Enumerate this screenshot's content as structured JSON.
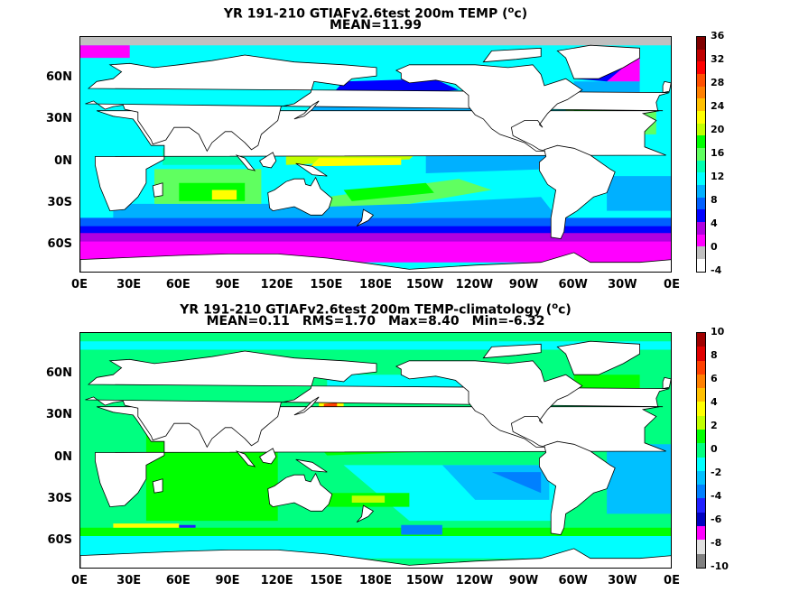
{
  "charts": [
    {
      "title_line1": "YR 191-210 GTIAFv2.6test 200m TEMP (",
      "title_unit_sup": "o",
      "title_unit_rest": "c)",
      "stats": [
        "MEAN=11.99"
      ],
      "colorbar_ticks": [
        "36",
        "32",
        "28",
        "24",
        "20",
        "16",
        "12",
        "8",
        "4",
        "0",
        "-4"
      ],
      "colors": [
        "#ffffff",
        "#c0c0c0",
        "#ff00ff",
        "#b000e0",
        "#0000ff",
        "#0060ff",
        "#00b0ff",
        "#00ffff",
        "#00ffb0",
        "#60ff60",
        "#00ff00",
        "#c0ff00",
        "#ffff00",
        "#ffc000",
        "#ff8000",
        "#ff5000",
        "#ff0000",
        "#c00000",
        "#800000"
      ]
    },
    {
      "title_line1": "YR 191-210 GTIAFv2.6test 200m TEMP-climatology (",
      "title_unit_sup": "o",
      "title_unit_rest": "c)",
      "stats": [
        "MEAN=0.11",
        "RMS=1.70",
        "Max=8.40",
        "Min=-6.32"
      ],
      "colorbar_ticks": [
        "10",
        "8",
        "6",
        "4",
        "2",
        "0",
        "-2",
        "-4",
        "-6",
        "-8",
        "-10"
      ],
      "colors": [
        "#808080",
        "#e0e0e0",
        "#ff00ff",
        "#0000c0",
        "#2020ff",
        "#0080ff",
        "#00c0ff",
        "#00ffff",
        "#00ff80",
        "#00ff00",
        "#c0ff00",
        "#ffff00",
        "#ffc000",
        "#ff8000",
        "#ff4000",
        "#e00000",
        "#a00000"
      ]
    }
  ],
  "chart_data": [
    {
      "type": "heatmap",
      "title": "YR 191-210 GTIAFv2.6test 200m TEMP (oc)",
      "subtitle": "MEAN=11.99",
      "x_ticks": [
        "0E",
        "30E",
        "60E",
        "90E",
        "120E",
        "150E",
        "180E",
        "150W",
        "120W",
        "90W",
        "60W",
        "30W",
        "0E"
      ],
      "y_ticks": [
        "60N",
        "30N",
        "0N",
        "30S",
        "60S"
      ],
      "xlim": [
        0,
        360
      ],
      "ylim": [
        -80,
        90
      ],
      "colorbar": {
        "min": -4,
        "max": 36,
        "ticks": [
          36,
          32,
          28,
          24,
          20,
          16,
          12,
          8,
          4,
          0,
          -4
        ]
      },
      "fields": [
        {
          "region": "equatorial-west-pacific",
          "value": 23
        },
        {
          "region": "subtropical-north-pacific",
          "value": 19
        },
        {
          "region": "subtropical-south-pacific",
          "value": 19
        },
        {
          "region": "north-atlantic-gyre",
          "value": 20
        },
        {
          "region": "indian-ocean",
          "value": 15
        },
        {
          "region": "eastern-pacific",
          "value": 12
        },
        {
          "region": "southern-ocean-front",
          "value": 4
        },
        {
          "region": "southern-ocean",
          "value": 0
        },
        {
          "region": "subpolar-north-pacific",
          "value": 3
        },
        {
          "region": "arctic",
          "value": -1
        }
      ]
    },
    {
      "type": "heatmap",
      "title": "YR 191-210 GTIAFv2.6test 200m TEMP-climatology (oc)",
      "subtitle": "MEAN=0.11 RMS=1.70 Max=8.40 Min=-6.32",
      "x_ticks": [
        "0E",
        "30E",
        "60E",
        "90E",
        "120E",
        "150E",
        "180E",
        "150W",
        "120W",
        "90W",
        "60W",
        "30W",
        "0E"
      ],
      "y_ticks": [
        "60N",
        "30N",
        "0N",
        "30S",
        "60S"
      ],
      "xlim": [
        0,
        360
      ],
      "ylim": [
        -80,
        90
      ],
      "colorbar": {
        "min": -10,
        "max": 10,
        "ticks": [
          10,
          8,
          6,
          4,
          2,
          0,
          -2,
          -4,
          -6,
          -8,
          -10
        ]
      },
      "stats": {
        "mean": 0.11,
        "rms": 1.7,
        "max": 8.4,
        "min": -6.32
      },
      "fields": [
        {
          "region": "equatorial-central-pacific",
          "value": 6
        },
        {
          "region": "kuroshio-extension",
          "value": 5
        },
        {
          "region": "eastern-equatorial-pacific",
          "value": -3
        },
        {
          "region": "south-pacific",
          "value": 0
        },
        {
          "region": "southern-ocean",
          "value": 0.5
        },
        {
          "region": "atlantic",
          "value": 0
        },
        {
          "region": "indian-ocean",
          "value": 0.5
        },
        {
          "region": "arctic",
          "value": 0
        }
      ]
    }
  ]
}
